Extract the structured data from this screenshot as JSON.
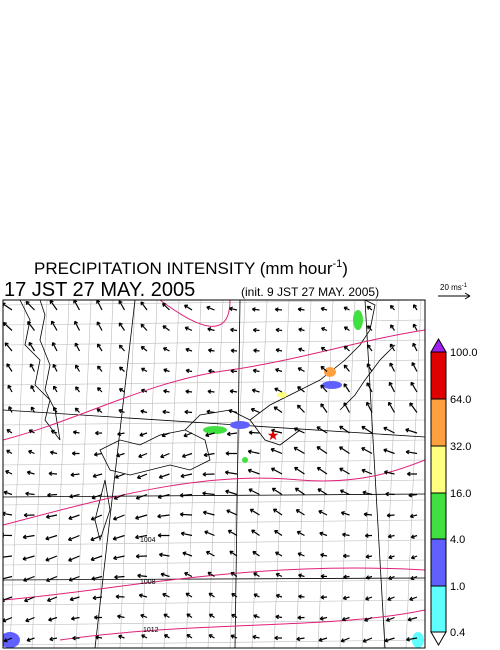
{
  "header": {
    "title": {
      "main": "PRECIPITATION INTENSITY (mm hour",
      "sup": "-1",
      "close": ")"
    },
    "time": "17 JST 27 MAY. 2005",
    "init": "(init. 9 JST 27 MAY. 2005)"
  },
  "vector_scale": {
    "main": "20 ms",
    "sup": "-1"
  },
  "colorbar": {
    "labels": [
      "100.0",
      "64.0",
      "32.0",
      "16.0",
      "4.0",
      "1.0",
      "0.4"
    ]
  },
  "isobar_labels": [
    "1004",
    "1008",
    "1012"
  ]
}
